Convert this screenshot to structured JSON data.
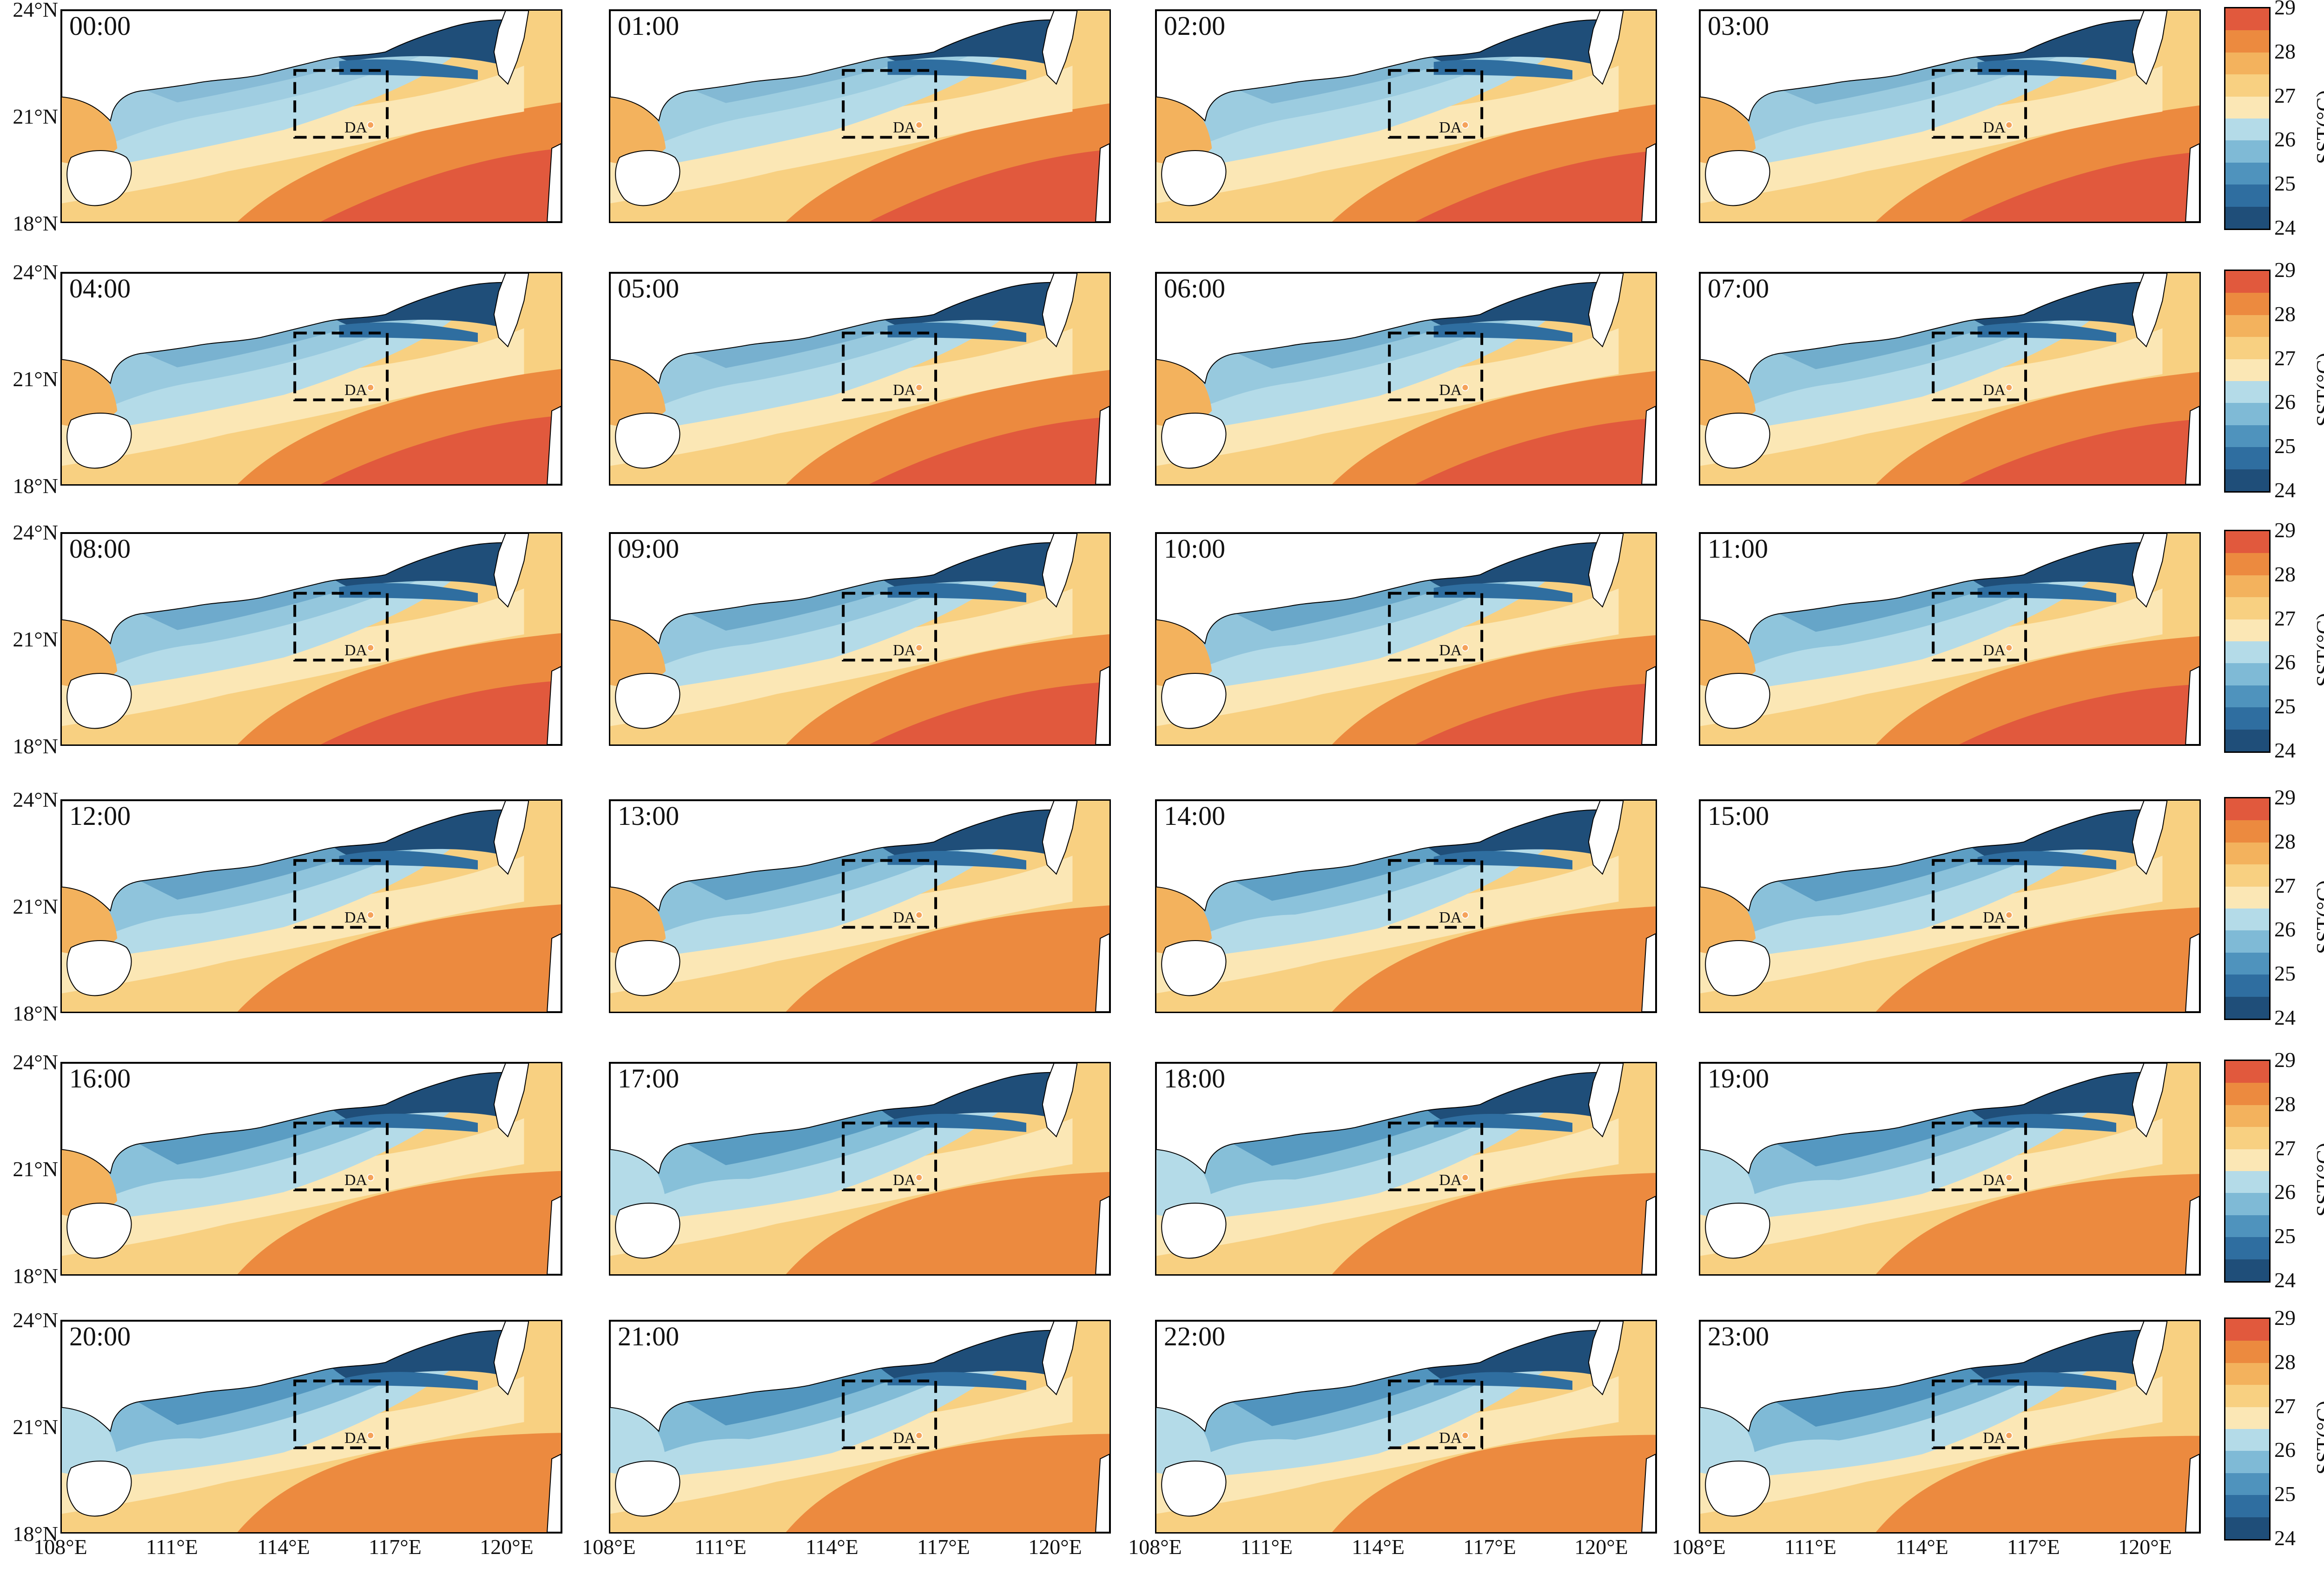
{
  "figure": {
    "times": [
      "00:00",
      "01:00",
      "02:00",
      "03:00",
      "04:00",
      "05:00",
      "06:00",
      "07:00",
      "08:00",
      "09:00",
      "10:00",
      "11:00",
      "12:00",
      "13:00",
      "14:00",
      "15:00",
      "16:00",
      "17:00",
      "18:00",
      "19:00",
      "20:00",
      "21:00",
      "22:00",
      "23:00"
    ],
    "lat_ticks": [
      "24°N",
      "21°N",
      "18°N"
    ],
    "lon_ticks": [
      "108°E",
      "111°E",
      "114°E",
      "117°E",
      "120°E"
    ],
    "box_label": "DA",
    "colorbar": {
      "title": "SST(°C)",
      "ticks": [
        "29",
        "28",
        "27",
        "26",
        "25",
        "24"
      ],
      "min": 24,
      "max": 29,
      "colors": [
        "#1f4e79",
        "#2f6ea0",
        "#4f93bd",
        "#7fbad6",
        "#b4dbe8",
        "#fbe7b5",
        "#f8d081",
        "#f3b25d",
        "#ec8a3f",
        "#e1593d"
      ]
    },
    "extent": {
      "lon": [
        108,
        121.5
      ],
      "lat": [
        18,
        24
      ]
    },
    "da_box": {
      "lon": [
        114.3,
        116.8
      ],
      "lat": [
        20.4,
        22.3
      ]
    },
    "da_point": {
      "lon": 116.35,
      "lat": 20.75
    }
  }
}
